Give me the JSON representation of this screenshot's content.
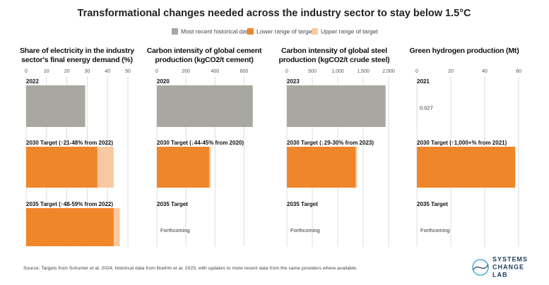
{
  "title": "Transformational changes needed across the industry sector to stay below 1.5°C",
  "source": "Source: Targets from Schumer et al. 2024; historical data from Boehm et al. 2023, with updates to more recent data from the same providers where available.",
  "logo": [
    "SYSTEMS",
    "CHANGE",
    "LAB"
  ],
  "chart_data": [
    {
      "type": "bar",
      "orientation": "horizontal",
      "title": "Share of electricity in the industry sector's final energy demand (%)",
      "categories": [
        "2022",
        "2030 Target (↑21-48% from 2022)",
        "2035 Target (↑48-59% from 2022)"
      ],
      "series": [
        {
          "name": "Most recent historical data",
          "color": "#a8a8a0",
          "values": [
            29,
            null,
            null
          ]
        },
        {
          "name": "Lower range of target",
          "color": "#f0862a",
          "values": [
            null,
            35,
            43
          ]
        },
        {
          "name": "Upper range of target",
          "color": "#f7c9a0",
          "values": [
            null,
            43,
            46
          ]
        }
      ],
      "notes": [
        null,
        null,
        null
      ],
      "xlim": [
        0,
        50
      ],
      "xticks": [
        0,
        10,
        20,
        30,
        40,
        50
      ],
      "grid": true
    },
    {
      "type": "bar",
      "orientation": "horizontal",
      "title": "Carbon intensity of global cement production (kgCO2/t cement)",
      "categories": [
        "2020",
        "2030 Target (↓44-45% from 2020)",
        "2035 Target"
      ],
      "series": [
        {
          "name": "Most recent historical data",
          "color": "#a8a8a0",
          "values": [
            660,
            null,
            null
          ]
        },
        {
          "name": "Lower range of target",
          "color": "#f0862a",
          "values": [
            null,
            360,
            null
          ]
        },
        {
          "name": "Upper range of target",
          "color": "#f7c9a0",
          "values": [
            null,
            370,
            null
          ]
        }
      ],
      "notes": [
        null,
        null,
        "Forthcoming"
      ],
      "xlim": [
        0,
        700
      ],
      "xticks": [
        0,
        200,
        400,
        600
      ],
      "grid": true
    },
    {
      "type": "bar",
      "orientation": "horizontal",
      "title": "Carbon intensity of global steel production (kgCO2/t crude steel)",
      "categories": [
        "2023",
        "2030 Target (↓29-30% from 2023)",
        "2035 Target"
      ],
      "series": [
        {
          "name": "Most recent historical data",
          "color": "#a8a8a0",
          "values": [
            1940,
            null,
            null
          ]
        },
        {
          "name": "Lower range of target",
          "color": "#f0862a",
          "values": [
            null,
            1350,
            null
          ]
        },
        {
          "name": "Upper range of target",
          "color": "#f7c9a0",
          "values": [
            null,
            1380,
            null
          ]
        }
      ],
      "notes": [
        null,
        null,
        "Forthcoming"
      ],
      "xlim": [
        0,
        2000
      ],
      "xticks": [
        0,
        500,
        {
          "value": 1000,
          "label": "1,000"
        },
        {
          "value": 1500,
          "label": "1,500"
        },
        {
          "value": 2000,
          "label": "2,000"
        }
      ],
      "grid": true
    },
    {
      "type": "bar",
      "orientation": "horizontal",
      "title": "Green hydrogen production (Mt)",
      "categories": [
        "2021",
        "2030 Target (↑1,000+% from 2021)",
        "2035 Target"
      ],
      "series": [
        {
          "name": "Most recent historical data",
          "color": "#a8a8a0",
          "values": [
            0.027,
            null,
            null
          ]
        },
        {
          "name": "Lower range of target",
          "color": "#f0862a",
          "values": [
            null,
            58,
            null
          ]
        },
        {
          "name": "Upper range of target",
          "color": "#f7c9a0",
          "values": [
            null,
            null,
            null
          ]
        }
      ],
      "notes": [
        null,
        null,
        "Forthcoming"
      ],
      "xlim": [
        0,
        60
      ],
      "xticks": [
        0,
        20,
        40,
        60
      ],
      "grid": true
    }
  ]
}
